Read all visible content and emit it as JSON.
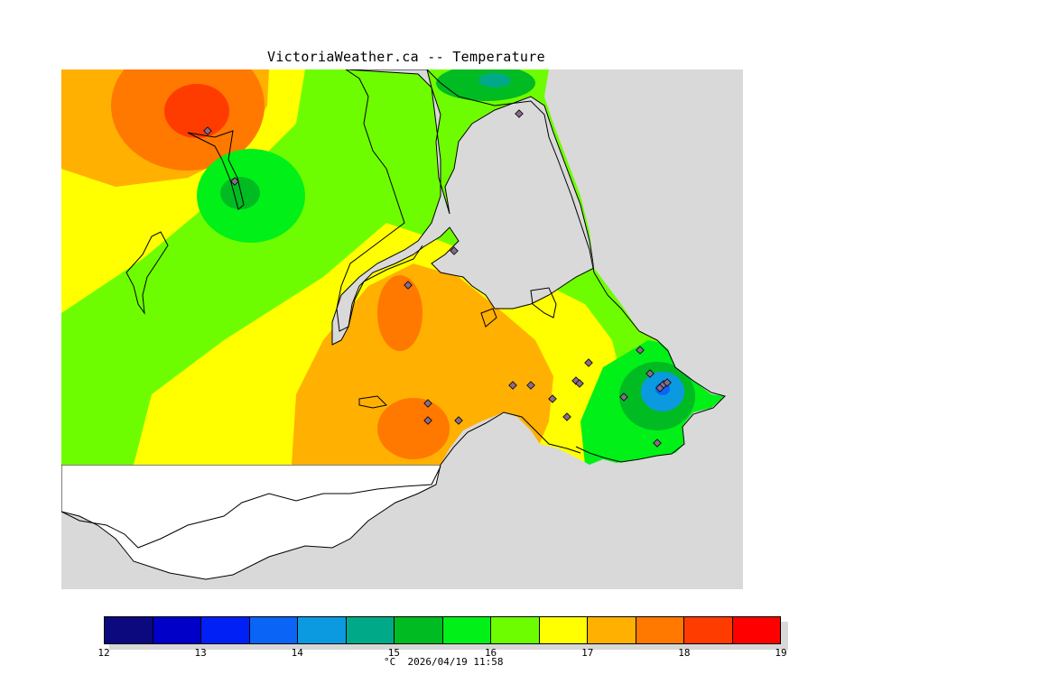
{
  "title": "VictoriaWeather.ca -- Temperature",
  "legend": {
    "unit": "°C",
    "timestamp": "2026/04/19 11:58",
    "ticks": [
      "12",
      "13",
      "14",
      "15",
      "16",
      "17",
      "18",
      "19"
    ],
    "colors": [
      "#0c087e",
      "#0000c8",
      "#0020f5",
      "#0a64f5",
      "#0b9ae0",
      "#00aa88",
      "#00bb22",
      "#00f018",
      "#6efd00",
      "#ffff00",
      "#ffb000",
      "#ff7800",
      "#ff3c00",
      "#ff0000"
    ]
  },
  "map": {
    "land_shading_colors": {
      "ocean": "#d9d9d9",
      "no_data_land": "#ffffff"
    },
    "station_marker_count": 22
  }
}
